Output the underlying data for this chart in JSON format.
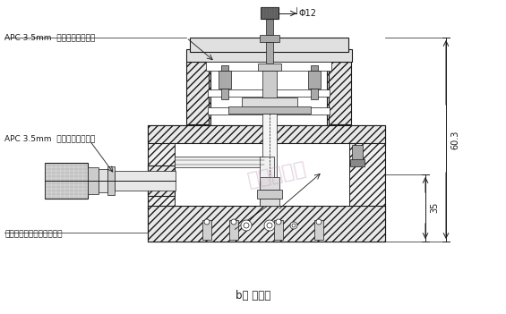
{
  "title": "b） 断面図",
  "label_apc_female": "APC 3.5mm  コネクタ（メス）",
  "label_apc_male": "APC 3.5mm  コネクタ（オス）",
  "label_cable": "同軸セミリジッドケーブル",
  "label_phi12": "Φ12",
  "label_603": "60.3",
  "label_35": "35",
  "watermark": "金橋鑫電子",
  "bg_color": "#ffffff",
  "line_color": "#1a1a1a",
  "watermark_color": "#c8a0bb",
  "font_size_label": 6.5,
  "font_size_title": 8.5,
  "font_size_dim": 7
}
